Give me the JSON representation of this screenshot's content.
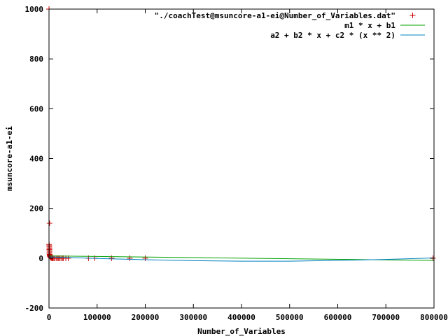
{
  "chart_data": {
    "type": "scatter",
    "xlabel": "Number_of_Variables",
    "ylabel": "msuncore-a1-ei",
    "xlim": [
      0,
      800000
    ],
    "ylim": [
      -200,
      1000
    ],
    "x_ticks": [
      {
        "value": 0,
        "label": "0"
      },
      {
        "value": 100000,
        "label": "100000"
      },
      {
        "value": 200000,
        "label": "200000"
      },
      {
        "value": 300000,
        "label": "300000"
      },
      {
        "value": 400000,
        "label": "400000"
      },
      {
        "value": 500000,
        "label": "500000"
      },
      {
        "value": 600000,
        "label": "600000"
      },
      {
        "value": 700000,
        "label": "700000"
      },
      {
        "value": 800000,
        "label": "800000"
      }
    ],
    "y_ticks": [
      {
        "value": -200,
        "label": "-200"
      },
      {
        "value": 0,
        "label": "0"
      },
      {
        "value": 200,
        "label": "200"
      },
      {
        "value": 400,
        "label": "400"
      },
      {
        "value": 600,
        "label": "600"
      },
      {
        "value": 800,
        "label": "800"
      },
      {
        "value": 1000,
        "label": "1000"
      }
    ],
    "grid": false,
    "legend_position": "top-right",
    "series": [
      {
        "name": "\"./coachTest@msuncore-a1-ei@Number_of_Variables.dat\"",
        "kind": "points",
        "marker": "+",
        "color": "#cc0000",
        "points": [
          [
            0,
            1000
          ],
          [
            1200,
            140
          ],
          [
            300,
            55
          ],
          [
            500,
            50
          ],
          [
            800,
            45
          ],
          [
            1000,
            40
          ],
          [
            600,
            35
          ],
          [
            900,
            30
          ],
          [
            1100,
            25
          ],
          [
            700,
            20
          ],
          [
            1300,
            15
          ],
          [
            1500,
            12
          ],
          [
            1600,
            10
          ],
          [
            2000,
            8
          ],
          [
            2500,
            6
          ],
          [
            3000,
            4
          ],
          [
            3500,
            3
          ],
          [
            4000,
            2
          ],
          [
            5000,
            1
          ],
          [
            6000,
            1
          ],
          [
            7000,
            0
          ],
          [
            8000,
            0
          ],
          [
            10000,
            0
          ],
          [
            12000,
            0
          ],
          [
            15000,
            0
          ],
          [
            18000,
            0
          ],
          [
            20000,
            0
          ],
          [
            22000,
            0
          ],
          [
            25000,
            0
          ],
          [
            28000,
            0
          ],
          [
            30000,
            0
          ],
          [
            35000,
            0
          ],
          [
            40000,
            0
          ],
          [
            82000,
            0
          ],
          [
            95000,
            0
          ],
          [
            130000,
            0
          ],
          [
            168000,
            0
          ],
          [
            200000,
            0
          ],
          [
            798000,
            0
          ]
        ]
      },
      {
        "name": "m1 * x + b1",
        "kind": "line",
        "color": "#00a000",
        "points": [
          [
            0,
            9
          ],
          [
            800000,
            -9
          ]
        ]
      },
      {
        "name": "a2 + b2 * x + c2 * (x ** 2)",
        "kind": "curve",
        "color": "#0080c0",
        "points": [
          [
            0,
            5
          ],
          [
            100000,
            -1
          ],
          [
            200000,
            -6
          ],
          [
            300000,
            -10
          ],
          [
            400000,
            -12
          ],
          [
            500000,
            -12
          ],
          [
            600000,
            -9
          ],
          [
            700000,
            -5
          ],
          [
            800000,
            1
          ]
        ]
      }
    ]
  }
}
